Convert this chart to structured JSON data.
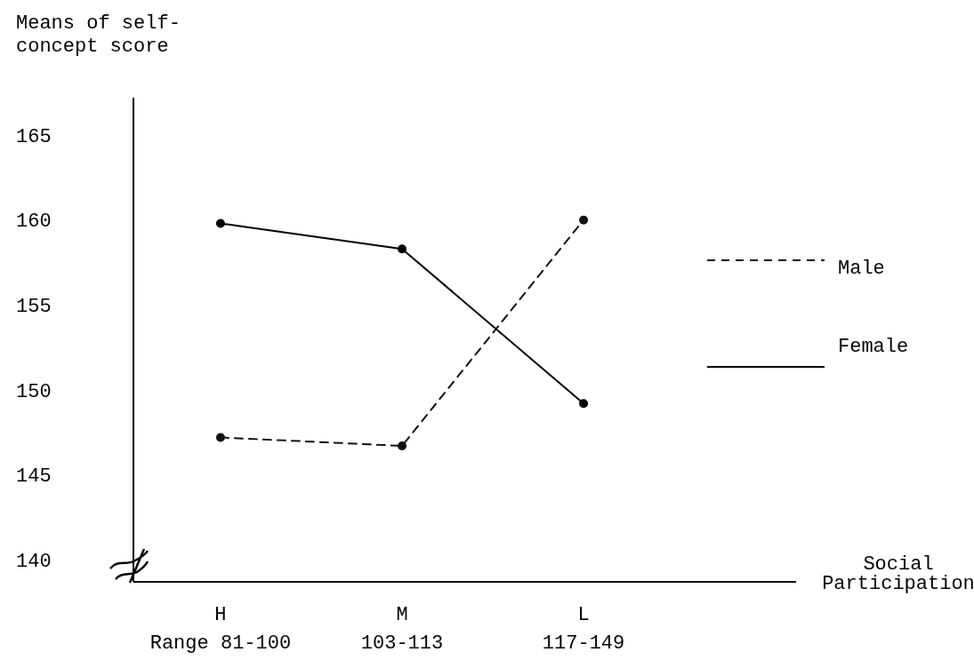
{
  "chart_data": {
    "type": "line",
    "ylabel": "Means of self-\nconcept score",
    "xlabel": "Social\nParticipation",
    "categories": [
      "H\nRange 81-100",
      "M\n103-113",
      "L\n117-149"
    ],
    "ylim": [
      138.7,
      167.2
    ],
    "yticks": [
      140,
      145,
      150,
      155,
      160,
      165
    ],
    "grid": false,
    "legend": "right",
    "marker": "circle",
    "series": [
      {
        "name": "Male",
        "color": "#111111",
        "line_style": "dashed",
        "values": [
          147.2,
          146.7,
          160
        ]
      },
      {
        "name": "Female",
        "color": "#000000",
        "line_style": "solid",
        "values": [
          159.8,
          158.3,
          149.2
        ]
      }
    ]
  }
}
